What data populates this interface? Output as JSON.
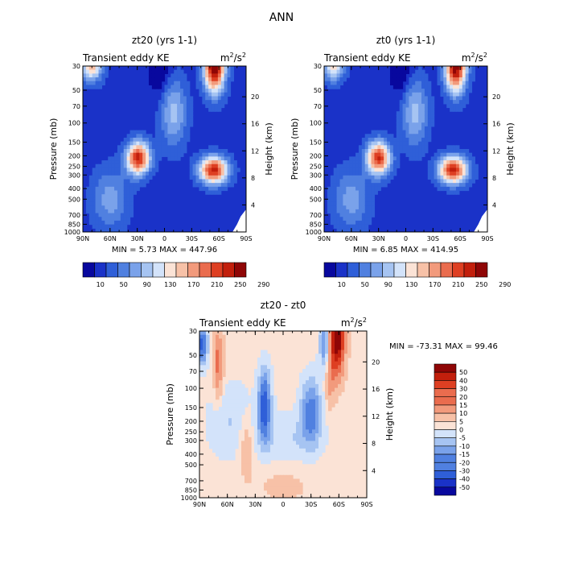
{
  "figure_title": "ANN",
  "chart_data": [
    {
      "type": "heatmap",
      "title": "zt20 (yrs 1-1)",
      "left_label": "Transient eddy KE",
      "units_base": "m",
      "units_exp": "2",
      "units_den": "/s",
      "units_den_exp": "2",
      "ylabel": "Pressure (mb)",
      "ylabel_right": "Height (km)",
      "x_ticks": [
        "90N",
        "60N",
        "30N",
        "0",
        "30S",
        "60S",
        "90S"
      ],
      "y_ticks": [
        "30",
        "50",
        "70",
        "100",
        "150",
        "200",
        "250",
        "300",
        "400",
        "500",
        "700",
        "850",
        "1000"
      ],
      "height_ticks": [
        "4",
        "8",
        "12",
        "16",
        "20"
      ],
      "stats_text": "MIN =    5.73   MAX =  447.96",
      "min": 5.73,
      "max": 447.96,
      "levels": [
        "10",
        "50",
        "90",
        "130",
        "170",
        "210",
        "250",
        "290"
      ],
      "palette": [
        "#08089e",
        "#1a32c8",
        "#2f5fd8",
        "#5080e0",
        "#7aa2ea",
        "#a6c4f2",
        "#d3e3fa",
        "#fbe3d6",
        "#f7c1a7",
        "#f29a7c",
        "#ea6c4e",
        "#de3f22",
        "#c21f0c",
        "#8f0606"
      ],
      "bg_color": "#1a32c8",
      "blobs": [
        {
          "lat": 29,
          "plev": 210,
          "sx": 9,
          "sy": 0.24,
          "amp": 11
        },
        {
          "lat": -54,
          "plev": 270,
          "sx": 11,
          "sy": 0.2,
          "amp": 11
        },
        {
          "lat": -55,
          "plev": 30,
          "sx": 8,
          "sy": 0.38,
          "amp": 13
        },
        {
          "lat": 80,
          "plev": 30,
          "sx": 8,
          "sy": 0.22,
          "amp": 7
        },
        {
          "lat": -10,
          "plev": 80,
          "sx": 10,
          "sy": 0.5,
          "amp": 4
        },
        {
          "lat": 60,
          "plev": 500,
          "sx": 14,
          "sy": 0.45,
          "amp": 3
        },
        {
          "lat": 5,
          "plev": 30,
          "sx": 8,
          "sy": 0.45,
          "amp": -2
        }
      ]
    },
    {
      "type": "heatmap",
      "title": "zt0 (yrs 1-1)",
      "left_label": "Transient eddy KE",
      "units_base": "m",
      "units_exp": "2",
      "units_den": "/s",
      "units_den_exp": "2",
      "ylabel": "Pressure (mb)",
      "ylabel_right": "Height (km)",
      "x_ticks": [
        "90N",
        "60N",
        "30N",
        "0",
        "30S",
        "60S",
        "90S"
      ],
      "y_ticks": [
        "30",
        "50",
        "70",
        "100",
        "150",
        "200",
        "250",
        "300",
        "400",
        "500",
        "700",
        "850",
        "1000"
      ],
      "height_ticks": [
        "4",
        "8",
        "12",
        "16",
        "20"
      ],
      "stats_text": "MIN =    6.85   MAX =  414.95",
      "min": 6.85,
      "max": 414.95,
      "levels": [
        "10",
        "50",
        "90",
        "130",
        "170",
        "210",
        "250",
        "290"
      ],
      "palette": [
        "#08089e",
        "#1a32c8",
        "#2f5fd8",
        "#5080e0",
        "#7aa2ea",
        "#a6c4f2",
        "#d3e3fa",
        "#fbe3d6",
        "#f7c1a7",
        "#f29a7c",
        "#ea6c4e",
        "#de3f22",
        "#c21f0c",
        "#8f0606"
      ],
      "bg_color": "#1a32c8",
      "blobs": [
        {
          "lat": 30,
          "plev": 210,
          "sx": 9,
          "sy": 0.24,
          "amp": 10.5
        },
        {
          "lat": -52,
          "plev": 270,
          "sx": 11,
          "sy": 0.2,
          "amp": 11
        },
        {
          "lat": -55,
          "plev": 30,
          "sx": 8,
          "sy": 0.38,
          "amp": 12.5
        },
        {
          "lat": 80,
          "plev": 30,
          "sx": 8,
          "sy": 0.22,
          "amp": 6
        },
        {
          "lat": -10,
          "plev": 80,
          "sx": 10,
          "sy": 0.5,
          "amp": 4
        },
        {
          "lat": 60,
          "plev": 500,
          "sx": 14,
          "sy": 0.45,
          "amp": 3
        },
        {
          "lat": 5,
          "plev": 30,
          "sx": 8,
          "sy": 0.45,
          "amp": -2
        }
      ]
    },
    {
      "type": "heatmap",
      "title": "zt20 - zt0",
      "left_label": "Transient eddy KE",
      "units_base": "m",
      "units_exp": "2",
      "units_den": "/s",
      "units_den_exp": "2",
      "ylabel": "Pressure (mb)",
      "ylabel_right": "Height (km)",
      "x_ticks": [
        "90N",
        "60N",
        "30N",
        "0",
        "30S",
        "60S",
        "90S"
      ],
      "y_ticks": [
        "30",
        "50",
        "70",
        "100",
        "150",
        "200",
        "250",
        "300",
        "400",
        "500",
        "700",
        "850",
        "1000"
      ],
      "height_ticks": [
        "4",
        "8",
        "12",
        "16",
        "20"
      ],
      "stats_text": "MIN = -73.31   MAX =   99.46",
      "min": -73.31,
      "max": 99.46,
      "levels": [
        "50",
        "40",
        "30",
        "20",
        "15",
        "10",
        "5",
        "0",
        "-5",
        "-10",
        "-15",
        "-20",
        "-30",
        "-40",
        "-50"
      ],
      "palette": [
        "#08089e",
        "#1a32c8",
        "#2f5fd8",
        "#5080e0",
        "#7aa2ea",
        "#a6c4f2",
        "#d3e3fa",
        "#fbe3d6",
        "#f7c1a7",
        "#f29a7c",
        "#ea6c4e",
        "#de3f22",
        "#c21f0c",
        "#8f0606"
      ],
      "bg_color": "#fbe3d6",
      "blobs": [
        {
          "lat": -58,
          "plev": 35,
          "sx": 6,
          "sy": 0.55,
          "amp": 6.5
        },
        {
          "lat": -50,
          "plev": 80,
          "sx": 4,
          "sy": 0.45,
          "amp": 2
        },
        {
          "lat": 70,
          "plev": 60,
          "sx": 4,
          "sy": 0.55,
          "amp": 3
        },
        {
          "lat": 40,
          "plev": 300,
          "sx": 6,
          "sy": 0.45,
          "amp": 2
        },
        {
          "lat": 20,
          "plev": 140,
          "sx": 5,
          "sy": 0.55,
          "amp": -5
        },
        {
          "lat": -30,
          "plev": 160,
          "sx": 8,
          "sy": 0.5,
          "amp": -4
        },
        {
          "lat": 87,
          "plev": 40,
          "sx": 4,
          "sy": 0.3,
          "amp": -5
        },
        {
          "lat": -45,
          "plev": 40,
          "sx": 4,
          "sy": 0.4,
          "amp": -4
        },
        {
          "lat": 55,
          "plev": 200,
          "sx": 20,
          "sy": 0.6,
          "amp": -1.5
        },
        {
          "lat": -5,
          "plev": 300,
          "sx": 25,
          "sy": 0.4,
          "amp": -1.5
        },
        {
          "lat": 0,
          "plev": 700,
          "sx": 30,
          "sy": 0.4,
          "amp": 0.8
        }
      ]
    }
  ]
}
